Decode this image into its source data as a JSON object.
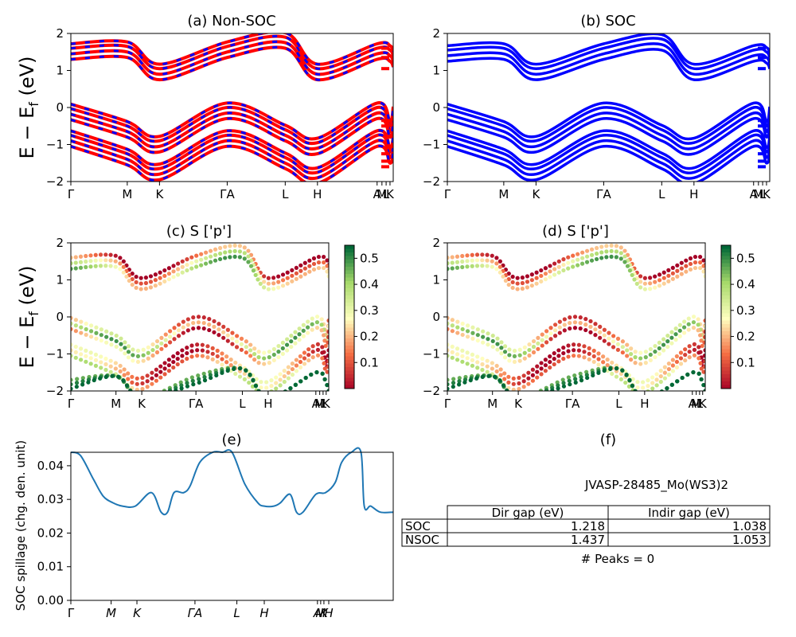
{
  "figure": {
    "kpoint_labels": [
      "Γ",
      "M",
      "K",
      "ΓA",
      "L",
      "H",
      "A",
      "M",
      "L",
      "K"
    ],
    "kpoint_labels_spillage": [
      "Γ",
      "M",
      "K",
      "ΓA",
      "L",
      "H",
      "A",
      "M",
      "K",
      "H"
    ],
    "energy_ylabel": "E − E",
    "energy_ylabel_sub": "f",
    "energy_ylabel_unit": " (eV)"
  },
  "chart_data": [
    {
      "id": "a",
      "type": "line",
      "title": "(a) Non-SOC",
      "ylabel": "E − E_f (eV)",
      "ylim": [
        -2,
        2
      ],
      "yticks": [
        "2",
        "1",
        "0",
        "−1",
        "−2"
      ],
      "colors": {
        "spin_up": "#ff0000",
        "spin_down": "#0000ff"
      },
      "bands": [
        {
          "name": "",
          "values": [
            -0.03,
            -0.5,
            -0.9,
            0.0,
            -0.6,
            -0.95,
            0.0,
            -0.5,
            -0.1
          ]
        },
        {
          "name": "",
          "values": [
            -0.75,
            -1.25,
            -1.65,
            -0.75,
            -1.35,
            -1.75,
            -0.75,
            -1.2,
            -0.9
          ]
        },
        {
          "name": "",
          "values": [
            1.6,
            1.65,
            1.05,
            1.65,
            1.9,
            1.05,
            1.6,
            1.55,
            1.4
          ]
        }
      ]
    },
    {
      "id": "b",
      "type": "line",
      "title": "(b) SOC",
      "ylim": [
        -2,
        2
      ],
      "yticks": [
        "2",
        "1",
        "0",
        "−1",
        "−2"
      ],
      "color": "#0000ff",
      "bands": [
        {
          "name": "",
          "values": [
            -0.03,
            -0.5,
            -0.9,
            0.0,
            -0.6,
            -0.95,
            0.0,
            -0.5,
            -0.1
          ]
        },
        {
          "name": "",
          "values": [
            -0.75,
            -1.25,
            -1.65,
            -0.75,
            -1.35,
            -1.75,
            -0.75,
            -1.2,
            -0.9
          ]
        },
        {
          "name": "",
          "values": [
            1.55,
            1.6,
            1.05,
            1.6,
            1.85,
            1.05,
            1.55,
            1.5,
            1.35
          ]
        }
      ]
    },
    {
      "id": "c",
      "type": "scatter",
      "title": "(c)  S ['p']",
      "ylabel": "E − E_f (eV)",
      "ylim": [
        -2,
        2
      ],
      "yticks": [
        "2",
        "1",
        "0",
        "−1",
        "−2"
      ],
      "colorbar": {
        "ticks": [
          "0.5",
          "0.4",
          "0.3",
          "0.2",
          "0.1"
        ],
        "range": [
          0.0,
          0.55
        ],
        "colormap": "RdYlGn"
      }
    },
    {
      "id": "d",
      "type": "scatter",
      "title": "(d) S ['p']",
      "ylim": [
        -2,
        2
      ],
      "yticks": [
        "2",
        "1",
        "0",
        "−1",
        "−2"
      ],
      "colorbar": {
        "ticks": [
          "0.5",
          "0.4",
          "0.3",
          "0.2",
          "0.1"
        ],
        "range": [
          0.0,
          0.55
        ],
        "colormap": "RdYlGn"
      }
    },
    {
      "id": "e",
      "type": "line",
      "title": "(e)",
      "ylabel": "SOC spillage (chg. den. unit)",
      "ylim": [
        0.0,
        0.044
      ],
      "yticks": [
        "0.04",
        "0.03",
        "0.02",
        "0.01",
        "0.00"
      ],
      "color": "#1f77b4",
      "x": [
        0,
        0.03,
        0.07,
        0.1,
        0.13,
        0.16,
        0.2,
        0.25,
        0.28,
        0.3,
        0.32,
        0.35,
        0.37,
        0.4,
        0.44,
        0.47,
        0.5,
        0.54,
        0.58,
        0.6,
        0.63,
        0.65,
        0.68,
        0.7,
        0.72,
        0.76,
        0.79,
        0.82,
        0.84,
        0.87,
        0.9,
        0.91,
        0.93,
        0.96,
        1.0
      ],
      "values": [
        0.044,
        0.043,
        0.036,
        0.031,
        0.029,
        0.028,
        0.028,
        0.032,
        0.0262,
        0.0262,
        0.032,
        0.032,
        0.034,
        0.041,
        0.044,
        0.044,
        0.044,
        0.0345,
        0.029,
        0.028,
        0.028,
        0.029,
        0.0315,
        0.0262,
        0.0262,
        0.0315,
        0.032,
        0.035,
        0.041,
        0.044,
        0.044,
        0.028,
        0.028,
        0.0262,
        0.0262
      ]
    }
  ],
  "panel_f": {
    "title": "(f)",
    "material": "JVASP-28485_Mo(WS3)2",
    "table": {
      "headers": [
        "",
        "Dir gap (eV)",
        "Indir gap (eV)"
      ],
      "rows": [
        {
          "label": "SOC",
          "dir": "1.218",
          "indir": "1.038"
        },
        {
          "label": "NSOC",
          "dir": "1.437",
          "indir": "1.053"
        }
      ]
    },
    "peaks": "# Peaks = 0"
  }
}
